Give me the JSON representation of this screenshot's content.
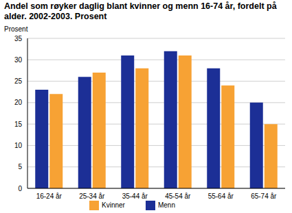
{
  "chart_data": {
    "type": "bar",
    "title": "Andel som røyker daglig blant kvinner og menn 16-74 år, fordelt på alder. 2002-2003. Prosent",
    "y_label": "Prosent",
    "categories": [
      "16-24 år",
      "25-34 år",
      "35-44 år",
      "45-54 år",
      "55-64 år",
      "65-74 år"
    ],
    "series": [
      {
        "name": "Menn",
        "color": "#1c2f96",
        "values": [
          23,
          26,
          31,
          32,
          28,
          20
        ]
      },
      {
        "name": "Kvinner",
        "color": "#f7a234",
        "values": [
          22,
          27,
          28,
          31,
          24,
          15
        ]
      }
    ],
    "ylim": [
      0,
      35
    ],
    "yticks": [
      0,
      5,
      10,
      15,
      20,
      25,
      30,
      35
    ],
    "grid": true,
    "legend": "bottom"
  }
}
